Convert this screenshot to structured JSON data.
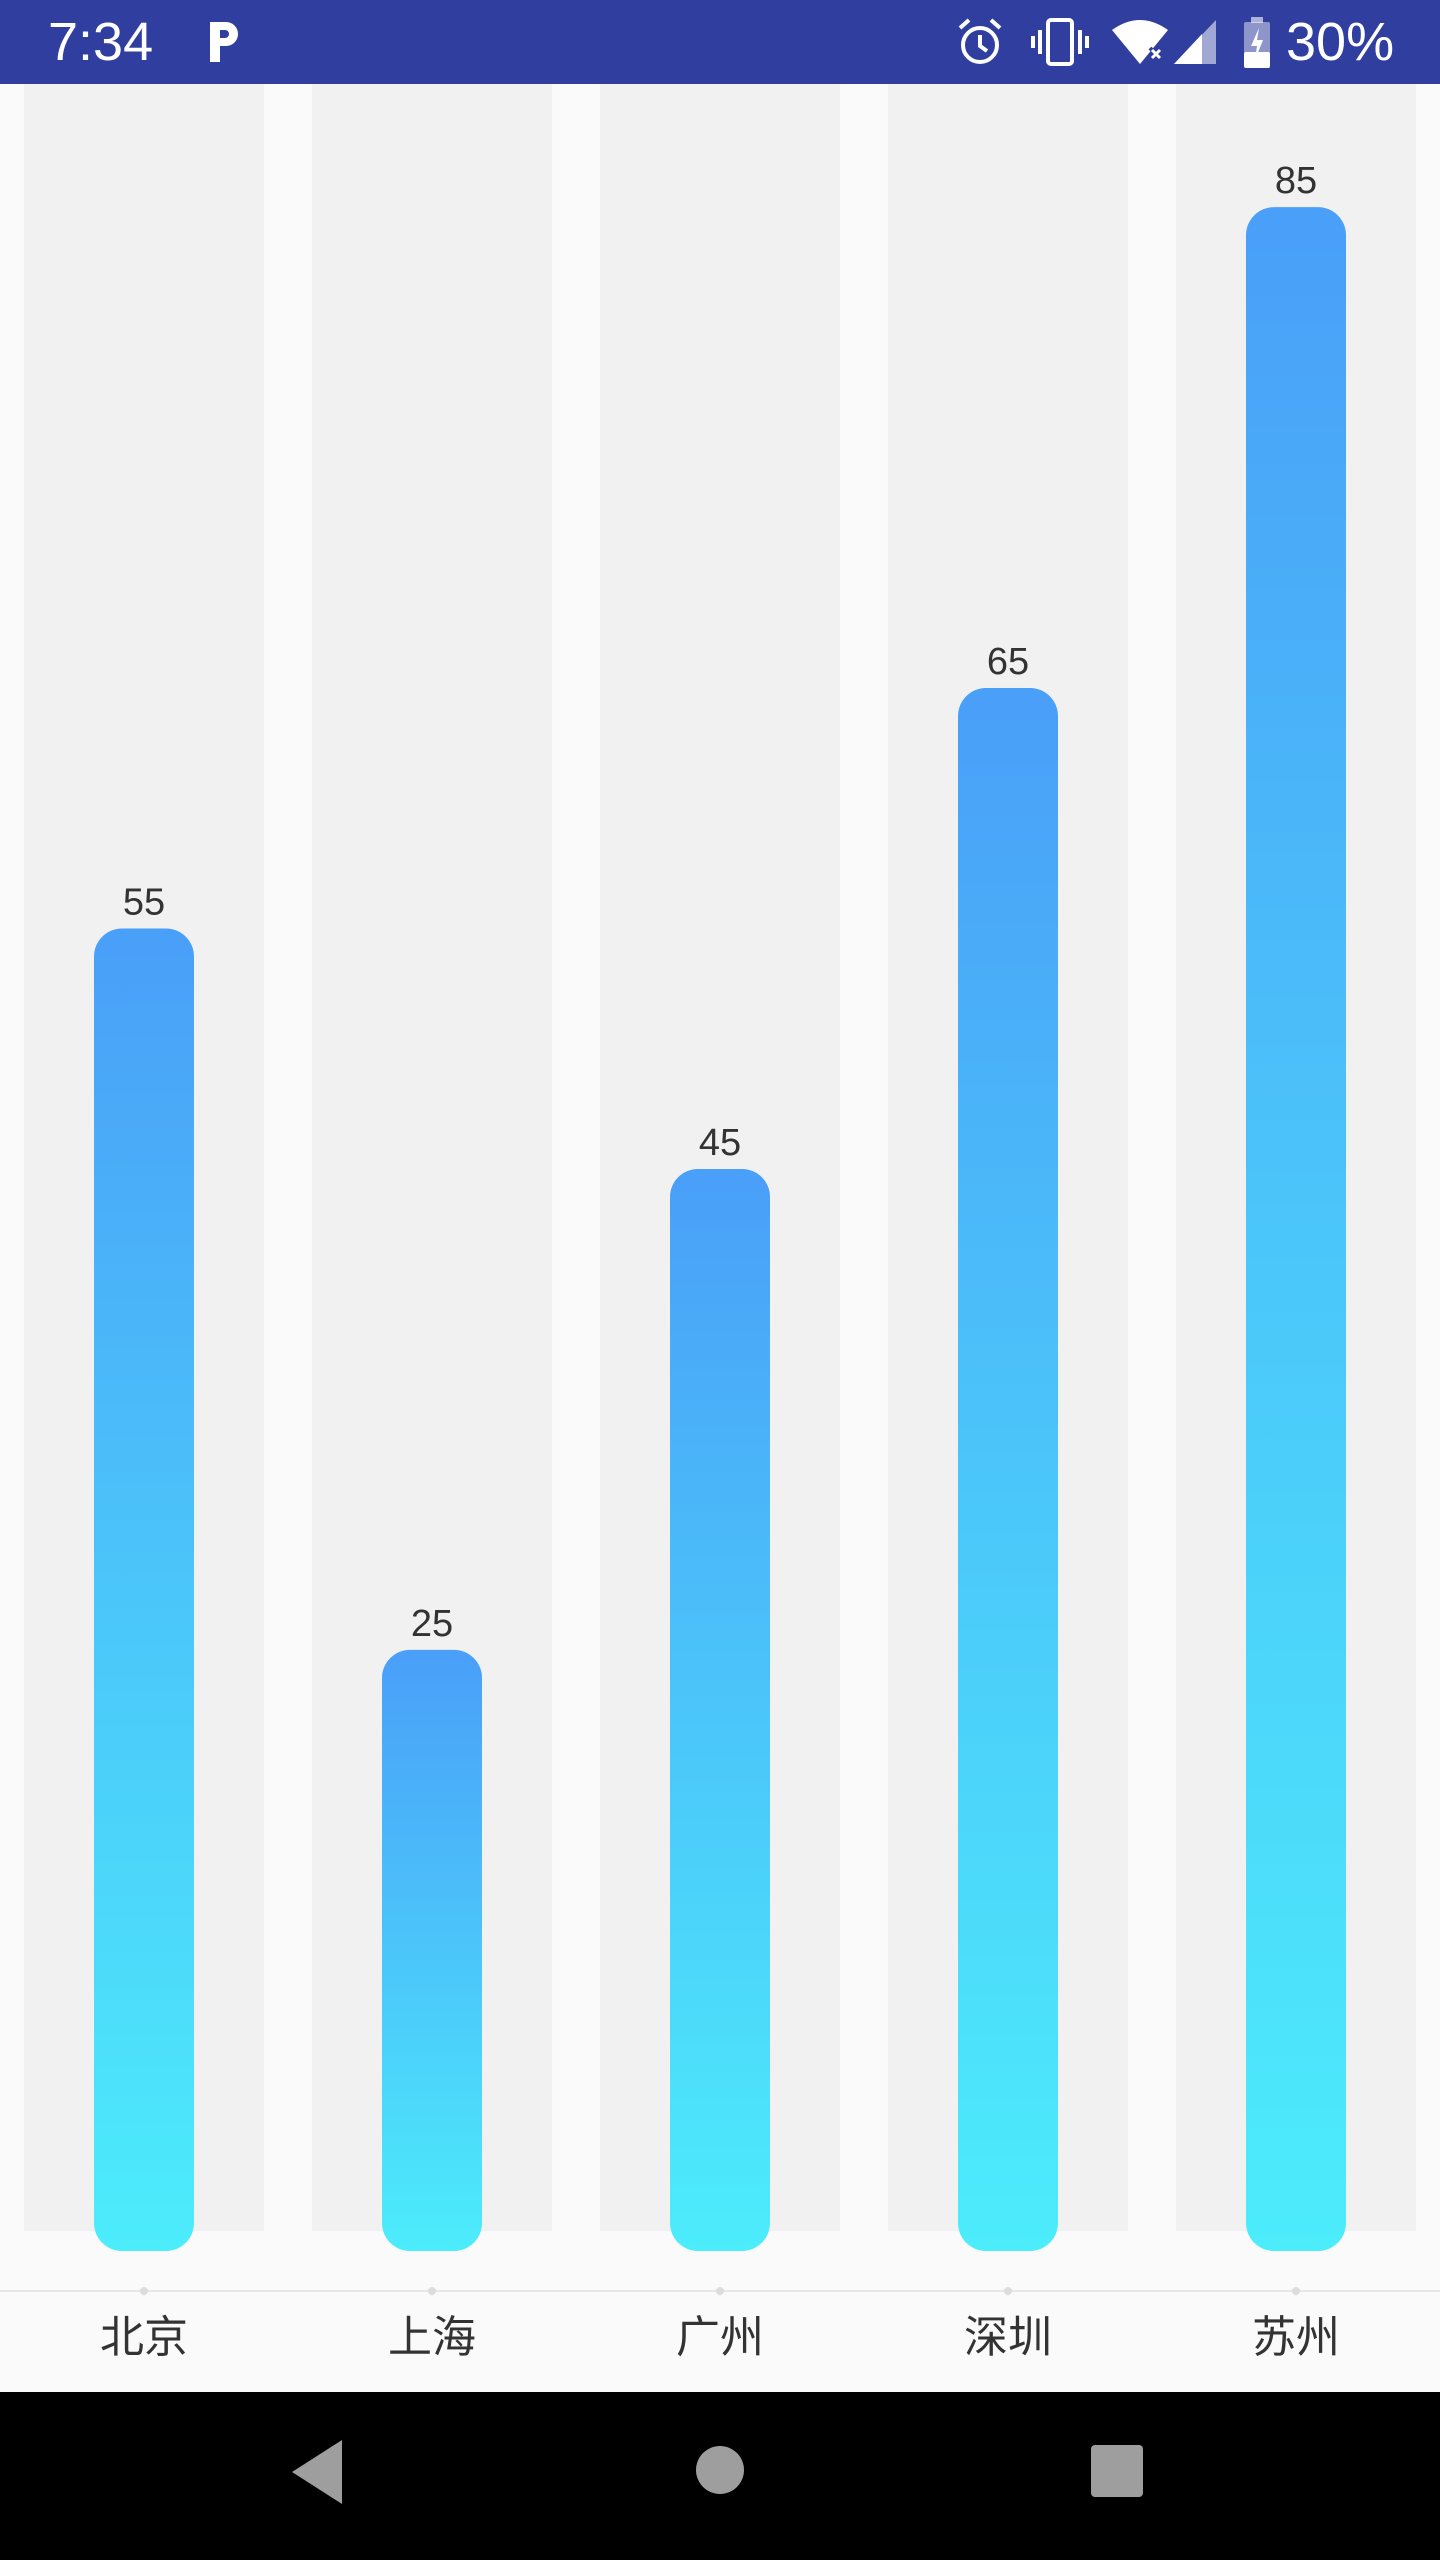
{
  "status_bar": {
    "time": "7:34",
    "battery_percent": "30%",
    "background_color": "#303f9f",
    "icons": [
      "parking-p-icon",
      "alarm-icon",
      "vibrate-icon",
      "wifi-icon",
      "cell-signal-icon",
      "battery-charging-icon"
    ]
  },
  "chart_data": {
    "type": "bar",
    "categories": [
      "北京",
      "上海",
      "广州",
      "深圳",
      "苏州"
    ],
    "values": [
      55,
      25,
      45,
      65,
      85
    ],
    "value_labels": [
      "55",
      "25",
      "45",
      "65",
      "85"
    ],
    "ylim": [
      0,
      88
    ],
    "bar_gradient": {
      "top": "#4a9ff8",
      "bottom": "#4cecfb"
    },
    "column_background": "#f1f1f1",
    "background": "#fafafa"
  },
  "nav_bar": {
    "icons": [
      "back-icon",
      "home-icon",
      "recents-icon"
    ]
  }
}
